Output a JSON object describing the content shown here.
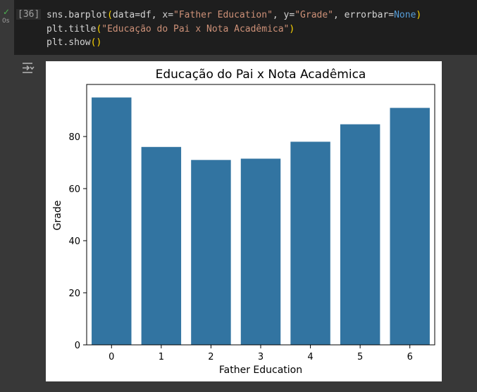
{
  "cell": {
    "run_status": "✓",
    "run_time": "0s",
    "exec_count": "[36]",
    "code_lines": [
      [
        {
          "t": "sns.barplot",
          "c": ""
        },
        {
          "t": "(",
          "c": "pn"
        },
        {
          "t": "data=df, x=",
          "c": ""
        },
        {
          "t": "\"Father Education\"",
          "c": "str"
        },
        {
          "t": ", y=",
          "c": ""
        },
        {
          "t": "\"Grade\"",
          "c": "str"
        },
        {
          "t": ", errorbar=",
          "c": ""
        },
        {
          "t": "None",
          "c": "kw"
        },
        {
          "t": ")",
          "c": "pn"
        }
      ],
      [
        {
          "t": "plt.title",
          "c": ""
        },
        {
          "t": "(",
          "c": "pn"
        },
        {
          "t": "\"Educação do Pai x Nota Acadêmica\"",
          "c": "str"
        },
        {
          "t": ")",
          "c": "pn"
        }
      ],
      [
        {
          "t": "plt.show",
          "c": ""
        },
        {
          "t": "()",
          "c": "pn"
        }
      ]
    ],
    "output_icon": "output-toggle-icon"
  },
  "colors": {
    "bar": "#3274a1",
    "code_bg": "#1e1e1e",
    "page_bg": "#383838"
  },
  "chart_data": {
    "type": "bar",
    "title": "Educação do Pai x Nota Acadêmica",
    "xlabel": "Father Education",
    "ylabel": "Grade",
    "categories": [
      "0",
      "1",
      "2",
      "3",
      "4",
      "5",
      "6"
    ],
    "values": [
      95,
      76,
      71,
      71.5,
      78,
      84.7,
      91
    ],
    "ylim": [
      0,
      100
    ],
    "yticks": [
      0,
      20,
      40,
      60,
      80
    ],
    "grid": false,
    "legend": "none"
  }
}
